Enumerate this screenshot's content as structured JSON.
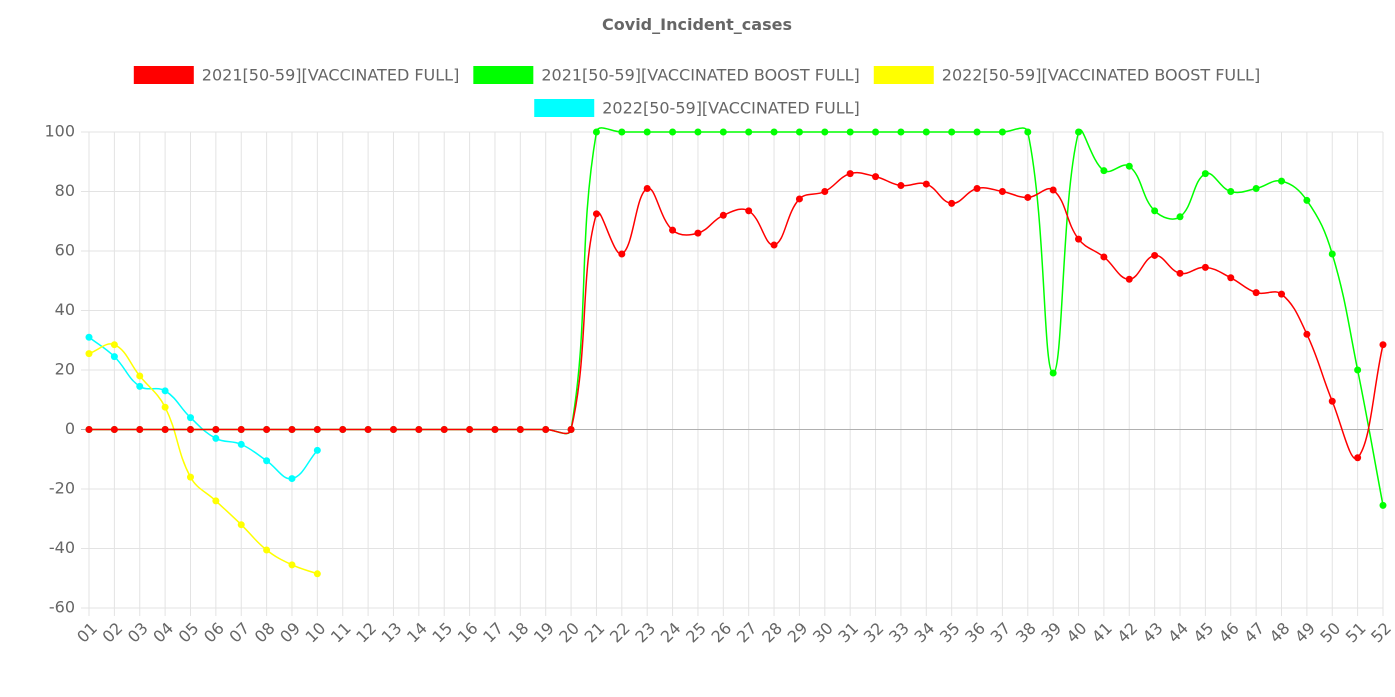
{
  "chart_data": {
    "type": "line",
    "title": "Covid_Incident_cases",
    "categories": [
      "01",
      "02",
      "03",
      "04",
      "05",
      "06",
      "07",
      "08",
      "09",
      "10",
      "11",
      "12",
      "13",
      "14",
      "15",
      "16",
      "17",
      "18",
      "19",
      "20",
      "21",
      "22",
      "23",
      "24",
      "25",
      "26",
      "27",
      "28",
      "29",
      "30",
      "31",
      "32",
      "33",
      "34",
      "35",
      "36",
      "37",
      "38",
      "39",
      "40",
      "41",
      "42",
      "43",
      "44",
      "45",
      "46",
      "47",
      "48",
      "49",
      "50",
      "51",
      "52"
    ],
    "ylim": [
      -60,
      100
    ],
    "yticks": [
      -60,
      -40,
      -20,
      0,
      20,
      40,
      60,
      80,
      100
    ],
    "grid": true,
    "legend": "top",
    "series": [
      {
        "name": "2021[50-59][VACCINATED FULL]",
        "color": "#ff0000",
        "values": [
          0,
          0,
          0,
          0,
          0,
          0,
          0,
          0,
          0,
          0,
          0,
          0,
          0,
          0,
          0,
          0,
          0,
          0,
          0,
          0,
          72.5,
          59,
          81,
          67,
          66,
          72,
          73.5,
          62,
          77.5,
          80,
          86,
          85,
          82,
          82.5,
          76,
          81,
          80,
          78,
          80.5,
          64,
          58,
          50.5,
          58.5,
          52.5,
          54.5,
          51,
          46,
          45.5,
          32,
          9.5,
          -9.5,
          28.5
        ]
      },
      {
        "name": "2021[50-59][VACCINATED BOOST FULL]",
        "color": "#00ff00",
        "values": [
          0,
          0,
          0,
          0,
          0,
          0,
          0,
          0,
          0,
          0,
          0,
          0,
          0,
          0,
          0,
          0,
          0,
          0,
          0,
          0,
          100,
          100,
          100,
          100,
          100,
          100,
          100,
          100,
          100,
          100,
          100,
          100,
          100,
          100,
          100,
          100,
          100,
          100,
          19,
          100,
          87,
          88.5,
          73.5,
          71.5,
          86,
          80,
          81,
          83.5,
          77,
          59,
          20,
          -25.5
        ]
      },
      {
        "name": "2022[50-59][VACCINATED BOOST FULL]",
        "color": "#ffff00",
        "values": [
          25.5,
          28.5,
          18,
          7.5,
          -16,
          -24,
          -32,
          -40.5,
          -45.5,
          -48.5,
          null,
          null,
          null,
          null,
          null,
          null,
          null,
          null,
          null,
          null,
          null,
          null,
          null,
          null,
          null,
          null,
          null,
          null,
          null,
          null,
          null,
          null,
          null,
          null,
          null,
          null,
          null,
          null,
          null,
          null,
          null,
          null,
          null,
          null,
          null,
          null,
          null,
          null,
          null,
          null,
          null,
          null
        ]
      },
      {
        "name": "2022[50-59][VACCINATED FULL]",
        "color": "#00ffff",
        "values": [
          31,
          24.5,
          14.5,
          13,
          4,
          -3,
          -5,
          -10.5,
          -16.5,
          -7,
          null,
          null,
          null,
          null,
          null,
          null,
          null,
          null,
          null,
          null,
          null,
          null,
          null,
          null,
          null,
          null,
          null,
          null,
          null,
          null,
          null,
          null,
          null,
          null,
          null,
          null,
          null,
          null,
          null,
          null,
          null,
          null,
          null,
          null,
          null,
          null,
          null,
          null,
          null,
          null,
          null,
          null
        ]
      }
    ]
  }
}
